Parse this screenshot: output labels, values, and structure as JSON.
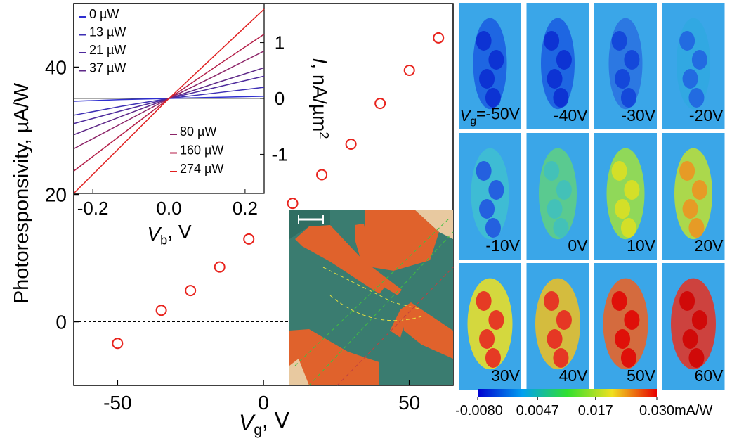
{
  "chart_data": [
    {
      "type": "scatter",
      "y_label": "Photoresponsivity, µA/W",
      "x_label": {
        "symbol": "V",
        "subscript": "g",
        "text": ", V"
      },
      "x": [
        -50,
        -35,
        -25,
        -15,
        -5,
        10,
        20,
        30,
        40,
        50,
        60
      ],
      "values": [
        -3.4,
        1.8,
        4.9,
        8.6,
        13,
        18.6,
        23.1,
        27.9,
        34.3,
        39.5,
        44.6
      ],
      "color": "#e8221c",
      "xlim": [
        -65,
        65
      ],
      "xticks": [
        -50,
        0,
        50
      ],
      "ylim": [
        -10,
        50
      ],
      "yticks": [
        0,
        20,
        40
      ]
    },
    {
      "type": "line",
      "x_label": {
        "symbol": "V",
        "subscript": "b",
        "text": ", V"
      },
      "y_label": {
        "symbol": "I",
        "text": ", nA/µm",
        "superscript": "2"
      },
      "x": [
        -0.25,
        -0.125,
        0,
        0.125,
        0.25
      ],
      "series": [
        {
          "name": "0 µW",
          "color": "#2f2fd0",
          "values": [
            -0.05,
            -0.02,
            0,
            0.02,
            0.04
          ]
        },
        {
          "name": "13 µW",
          "color": "#3d2fb4",
          "values": [
            -0.3,
            -0.14,
            0,
            0.1,
            0.2
          ]
        },
        {
          "name": "21 µW",
          "color": "#4d2a9c",
          "values": [
            -0.45,
            -0.22,
            0,
            0.2,
            0.4
          ]
        },
        {
          "name": "37 µW",
          "color": "#5e2888",
          "values": [
            -0.65,
            -0.32,
            0,
            0.28,
            0.55
          ]
        },
        {
          "name": "80 µW",
          "color": "#8c2468",
          "values": [
            -0.9,
            -0.45,
            0,
            0.42,
            0.85
          ]
        },
        {
          "name": "160 µW",
          "color": "#b41e48",
          "values": [
            -1.3,
            -0.65,
            0,
            0.58,
            1.15
          ]
        },
        {
          "name": "274 µW",
          "color": "#e02020",
          "values": [
            -1.7,
            -0.85,
            0,
            0.8,
            1.6
          ]
        }
      ],
      "xlim": [
        -0.25,
        0.25
      ],
      "xticks": [
        -0.2,
        {
          "value": 0,
          "label": "0.0"
        },
        0.2
      ],
      "ylim": [
        -1.7,
        1.7
      ],
      "yticks": [
        1,
        0,
        -1
      ]
    }
  ],
  "maps": {
    "first_prefix": "V",
    "first_prefix_sub": "g",
    "labels": [
      "=-50V",
      "-40V",
      "-30V",
      "-20V",
      "-10V",
      "0V",
      "10V",
      "20V",
      "30V",
      "40V",
      "50V",
      "60V"
    ],
    "colorbar": {
      "lim": [
        -0.008,
        0.03
      ],
      "ticks": [
        {
          "value": -0.008,
          "label": "-0.0080"
        },
        0.0047,
        0.017,
        {
          "value": 0.03,
          "label": "0.030"
        }
      ],
      "unit": "mA/W"
    }
  }
}
